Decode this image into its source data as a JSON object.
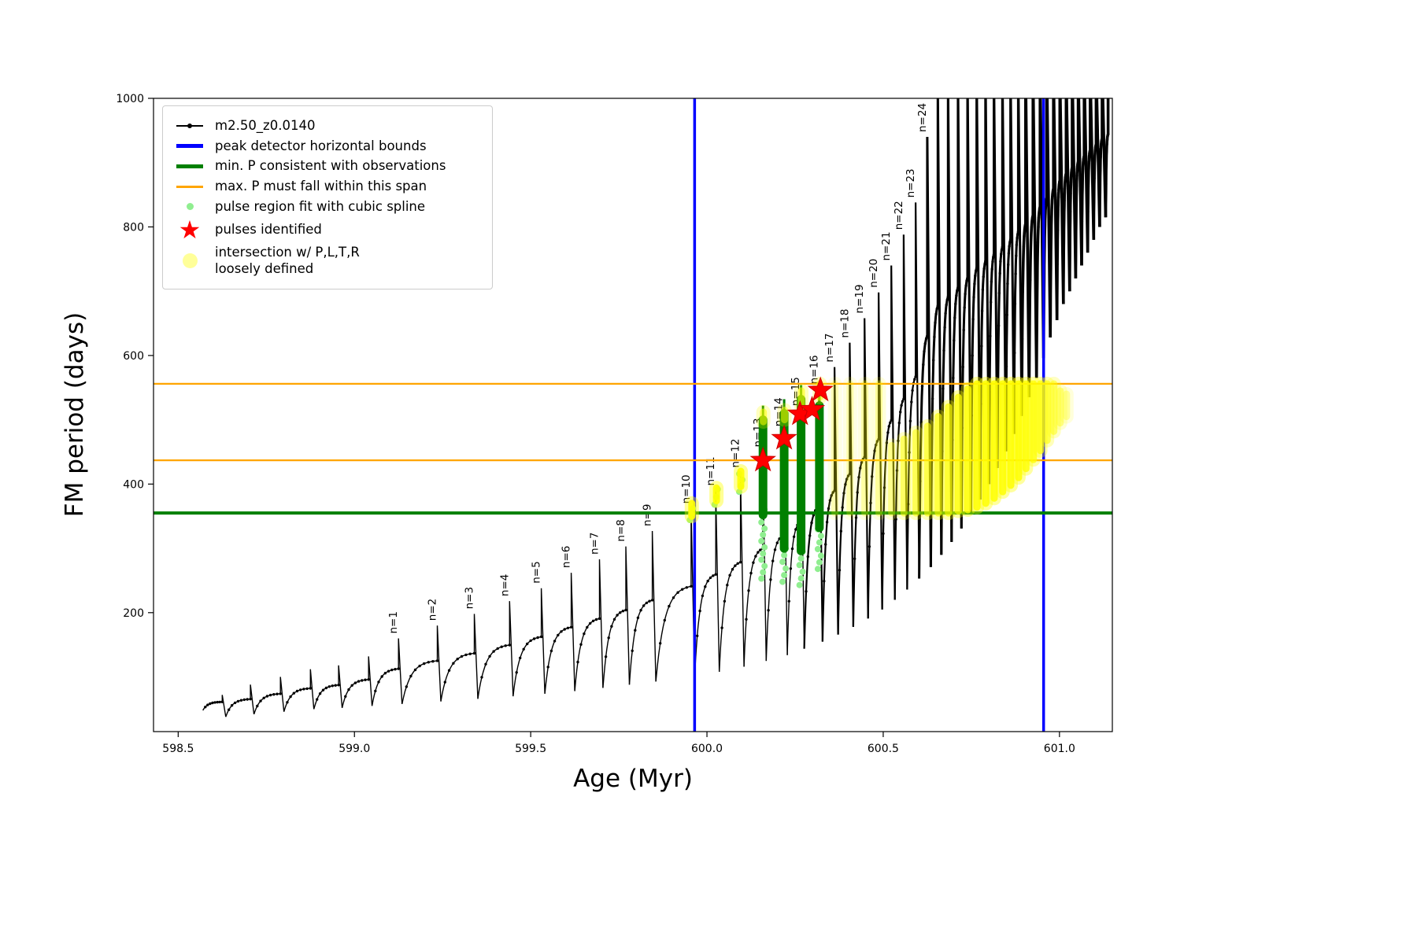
{
  "chart_data": {
    "type": "line",
    "title": "",
    "xlabel": "Age (Myr)",
    "ylabel": "FM period (days)",
    "xlim": [
      598.43,
      601.15
    ],
    "ylim": [
      15,
      1000
    ],
    "xticks": [
      598.5,
      599.0,
      599.5,
      600.0,
      600.5,
      601.0
    ],
    "yticks": [
      200,
      400,
      600,
      800,
      1000
    ],
    "grid": false,
    "legend": {
      "position": "upper-left",
      "items": [
        {
          "label": "m2.50_z0.0140",
          "marker": "line-dot",
          "color": "#000000"
        },
        {
          "label": "peak detector horizontal bounds",
          "marker": "thick-line",
          "color": "#0000ff"
        },
        {
          "label": "min. P consistent with observations",
          "marker": "thick-line",
          "color": "#008000"
        },
        {
          "label": "max. P must fall within this span",
          "marker": "line",
          "color": "#ffa500"
        },
        {
          "label": "pulse region fit with cubic spline",
          "marker": "small-dot",
          "color": "#90ee90"
        },
        {
          "label": "pulses identified",
          "marker": "star",
          "color": "#ff0000"
        },
        {
          "label": "intersection w/ P,L,T,R\nloosely defined",
          "marker": "big-dot",
          "color": "#ffff99"
        }
      ]
    },
    "series": {
      "name": "m2.50_z0.0140",
      "color": "#000000",
      "cycles": [
        [
          598.57,
          48,
          598.625,
          72,
          null
        ],
        [
          598.635,
          38,
          598.705,
          88,
          null
        ],
        [
          598.715,
          42,
          598.79,
          100,
          null
        ],
        [
          598.8,
          46,
          598.875,
          112,
          null
        ],
        [
          598.885,
          50,
          598.955,
          118,
          null
        ],
        [
          598.965,
          52,
          599.04,
          132,
          null
        ],
        [
          599.05,
          55,
          599.125,
          160,
          "n=1"
        ],
        [
          599.135,
          58,
          599.235,
          180,
          "n=2"
        ],
        [
          599.245,
          62,
          599.34,
          198,
          "n=3"
        ],
        [
          599.35,
          66,
          599.44,
          218,
          "n=4"
        ],
        [
          599.45,
          70,
          599.53,
          238,
          "n=5"
        ],
        [
          599.54,
          74,
          599.615,
          262,
          "n=6"
        ],
        [
          599.625,
          78,
          599.695,
          283,
          "n=7"
        ],
        [
          599.705,
          83,
          599.77,
          303,
          "n=8"
        ],
        [
          599.78,
          88,
          599.845,
          327,
          "n=9"
        ],
        [
          599.855,
          93,
          599.955,
          362,
          "n=10"
        ],
        [
          599.965,
          100,
          600.025,
          390,
          "n=11"
        ],
        [
          600.035,
          108,
          600.095,
          418,
          "n=12"
        ],
        [
          600.105,
          116,
          600.158,
          450,
          "n=13"
        ],
        [
          600.168,
          125,
          600.218,
          482,
          "n=14"
        ],
        [
          600.228,
          134,
          600.266,
          514,
          "n=15"
        ],
        [
          600.276,
          144,
          600.318,
          548,
          "n=16"
        ],
        [
          600.328,
          155,
          600.362,
          582,
          "n=17"
        ],
        [
          600.372,
          166,
          600.405,
          620,
          "n=18"
        ],
        [
          600.415,
          178,
          600.447,
          658,
          "n=19"
        ],
        [
          600.457,
          191,
          600.487,
          698,
          "n=20"
        ],
        [
          600.497,
          205,
          600.523,
          740,
          "n=21"
        ],
        [
          600.533,
          220,
          600.558,
          788,
          "n=22"
        ],
        [
          600.568,
          236,
          600.592,
          838,
          "n=23"
        ],
        [
          600.602,
          253,
          600.625,
          940,
          "n=24"
        ],
        [
          600.635,
          271,
          600.655,
          1010,
          null
        ],
        [
          600.665,
          290,
          600.684,
          1020,
          null
        ],
        [
          600.694,
          310,
          600.712,
          1030,
          null
        ],
        [
          600.722,
          331,
          600.739,
          1040,
          null
        ],
        [
          600.749,
          353,
          600.765,
          1050,
          null
        ],
        [
          600.775,
          376,
          600.79,
          1050,
          null
        ],
        [
          600.8,
          400,
          600.814,
          1050,
          null
        ],
        [
          600.824,
          425,
          600.838,
          1050,
          null
        ],
        [
          600.848,
          451,
          600.861,
          1050,
          null
        ],
        [
          600.871,
          478,
          600.883,
          1050,
          null
        ],
        [
          600.893,
          506,
          600.904,
          1050,
          null
        ],
        [
          600.914,
          535,
          600.925,
          1050,
          null
        ],
        [
          600.935,
          565,
          600.945,
          1050,
          null
        ],
        [
          600.955,
          596,
          600.964,
          1050,
          null
        ],
        [
          600.974,
          628,
          600.983,
          1050,
          null
        ],
        [
          600.993,
          655,
          601.001,
          1050,
          null
        ],
        [
          601.011,
          680,
          601.019,
          1050,
          null
        ],
        [
          601.029,
          700,
          601.036,
          1050,
          null
        ],
        [
          601.046,
          720,
          601.053,
          1050,
          null
        ],
        [
          601.063,
          740,
          601.07,
          1050,
          null
        ],
        [
          601.08,
          760,
          601.087,
          1050,
          null
        ],
        [
          601.097,
          780,
          601.104,
          1050,
          null
        ],
        [
          601.114,
          800,
          601.121,
          1050,
          null
        ],
        [
          601.131,
          815,
          601.138,
          1050,
          null
        ]
      ]
    },
    "peak_detector_bounds": {
      "color": "#0000ff",
      "x_values": [
        599.965,
        600.955
      ]
    },
    "min_P_line": {
      "color": "#008000",
      "y": 355
    },
    "max_P_span": {
      "color": "#ffa500",
      "y_values": [
        437,
        556
      ]
    },
    "spline_regions": {
      "color": "#90ee90",
      "columns": [
        [
          599.956,
          344,
          362
        ],
        [
          600.026,
          368,
          392
        ],
        [
          600.096,
          388,
          416
        ],
        [
          600.159,
          253,
          360
        ],
        [
          600.219,
          248,
          310
        ],
        [
          600.267,
          243,
          305
        ],
        [
          600.319,
          268,
          340
        ]
      ]
    },
    "pulse_region_bars": {
      "color": "#008000",
      "columns": [
        [
          600.159,
          352,
          500
        ],
        [
          600.219,
          300,
          510
        ],
        [
          600.267,
          296,
          532
        ],
        [
          600.319,
          332,
          522
        ]
      ]
    },
    "pulses_identified": {
      "color": "#ff0000",
      "points": [
        [
          600.159,
          437
        ],
        [
          600.219,
          471
        ],
        [
          600.264,
          509
        ],
        [
          600.298,
          516
        ],
        [
          600.322,
          546
        ]
      ]
    },
    "intersection_region": {
      "color": "#ffff00",
      "columns": [
        [
          599.957,
          350,
          370,
          0.9
        ],
        [
          600.027,
          374,
          394,
          0.9
        ],
        [
          600.096,
          396,
          420,
          0.9
        ],
        [
          600.16,
          497,
          512,
          0.55
        ],
        [
          600.22,
          500,
          515,
          0.5
        ],
        [
          600.268,
          520,
          545,
          0.55
        ],
        [
          600.32,
          535,
          556,
          0.55
        ],
        [
          600.363,
          355,
          556,
          0.22
        ],
        [
          600.406,
          355,
          556,
          0.24
        ],
        [
          600.448,
          355,
          556,
          0.27
        ],
        [
          600.488,
          355,
          556,
          0.3
        ],
        [
          600.524,
          355,
          460,
          0.35
        ],
        [
          600.559,
          355,
          470,
          0.5
        ],
        [
          600.593,
          355,
          480,
          0.55
        ],
        [
          600.626,
          355,
          490,
          0.6
        ],
        [
          600.656,
          355,
          505,
          0.65
        ],
        [
          600.685,
          355,
          520,
          0.7
        ],
        [
          600.713,
          358,
          535,
          0.75
        ],
        [
          600.74,
          360,
          548,
          0.8
        ],
        [
          600.766,
          364,
          556,
          0.85
        ],
        [
          600.791,
          370,
          556,
          0.85
        ],
        [
          600.815,
          378,
          556,
          0.85
        ],
        [
          600.839,
          388,
          556,
          0.85
        ],
        [
          600.862,
          398,
          556,
          0.85
        ],
        [
          600.884,
          410,
          556,
          0.85
        ],
        [
          600.905,
          424,
          556,
          0.8
        ],
        [
          600.926,
          438,
          556,
          0.75
        ],
        [
          600.946,
          452,
          556,
          0.7
        ],
        [
          600.965,
          468,
          556,
          0.6
        ],
        [
          600.984,
          482,
          556,
          0.5
        ],
        [
          601.002,
          495,
          545,
          0.4
        ],
        [
          601.02,
          505,
          540,
          0.3
        ]
      ]
    }
  }
}
